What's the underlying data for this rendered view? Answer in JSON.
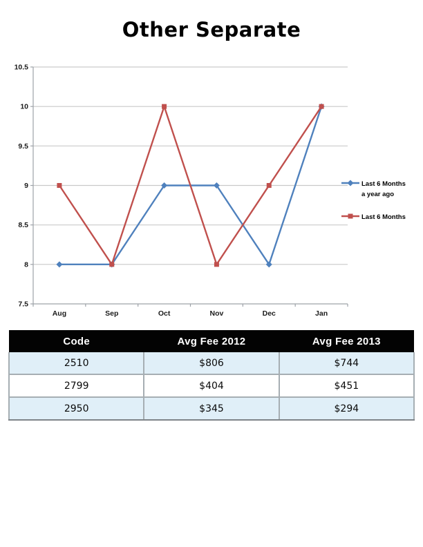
{
  "chart_data": {
    "type": "line",
    "title": "Other Separate",
    "categories": [
      "Aug",
      "Sep",
      "Oct",
      "Nov",
      "Dec",
      "Jan"
    ],
    "series": [
      {
        "name": "Last 6 Months a year ago",
        "legend_lines": [
          "Last 6 Months",
          "a year ago"
        ],
        "color": "#4F81BD",
        "marker": "diamond",
        "values": [
          8,
          8,
          9,
          9,
          8,
          10
        ]
      },
      {
        "name": "Last 6 Months",
        "legend_lines": [
          "Last 6 Months"
        ],
        "color": "#C0504D",
        "marker": "square",
        "values": [
          9,
          8,
          10,
          8,
          9,
          10
        ]
      }
    ],
    "ylim": [
      7.5,
      10.5
    ],
    "ytick_step": 0.5,
    "grid": true,
    "legend_position": "right",
    "axis_color": "#9DA2A8",
    "gridline_color": "#C9C9C9",
    "tick_label_color": "#1A1A1A"
  },
  "table": {
    "columns": [
      "Code",
      "Avg Fee 2012",
      "Avg Fee 2013"
    ],
    "rows": [
      [
        "2510",
        "$806",
        "$744"
      ],
      [
        "2799",
        "$404",
        "$451"
      ],
      [
        "2950",
        "$345",
        "$294"
      ]
    ],
    "header_bg": "#030303",
    "header_text_color": "#FFFFFF",
    "stripe_color": "#E0EFF8",
    "border_color": "#A6AEB3"
  }
}
